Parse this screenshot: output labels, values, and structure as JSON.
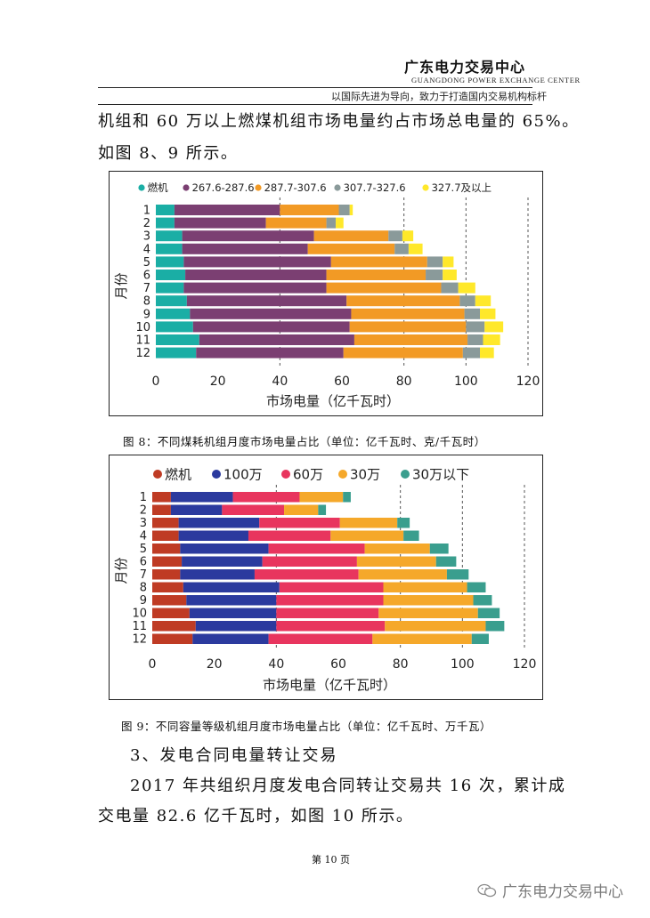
{
  "header": {
    "org_name": "广东电力交易中心",
    "org_name_en": "GUANGDONG POWER EXCHANGE CENTER",
    "motto": "以国际先进为导向，致力于打造国内交易机构标杆"
  },
  "body_text": {
    "para1_line1": "机组和 60 万以上燃煤机组市场电量约占市场总电量的 65%。",
    "para1_line2": "如图 8、9 所示。",
    "section_heading": "3、发电合同电量转让交易",
    "para2_line1": "2017 年共组织月度发电合同转让交易共 16 次，累计成",
    "para2_line2": "交电量 82.6 亿千瓦时，如图 10 所示。"
  },
  "captions": {
    "fig8": "图 8：不同煤耗机组月度市场电量占比（单位：亿千瓦时、克/千瓦时）",
    "fig9": "图 9：不同容量等级机组月度市场电量占比（单位：亿千瓦时、万千瓦）"
  },
  "page_number": "第 10 页",
  "watermark": "广东电力交易中心",
  "chart_data": [
    {
      "type": "bar",
      "orientation": "horizontal",
      "stacked": true,
      "title": "",
      "xlabel": "市场电量（亿千瓦时）",
      "ylabel": "月份",
      "xlim": [
        0,
        120
      ],
      "xticks": [
        "0",
        "20",
        "40",
        "60",
        "80",
        "100",
        "120"
      ],
      "dashed_gridlines_at": [
        40,
        80,
        100,
        120
      ],
      "legend_position": "top",
      "categories": [
        "1",
        "2",
        "3",
        "4",
        "5",
        "6",
        "7",
        "8",
        "9",
        "10",
        "11",
        "12"
      ],
      "series": [
        {
          "name": "燃机",
          "color": "#1aaea5",
          "values": [
            6,
            6,
            8.5,
            8.5,
            9,
            9.5,
            9,
            10,
            11,
            12,
            14,
            13
          ]
        },
        {
          "name": "267.6-287.6",
          "color": "#7b3f72",
          "values": [
            34,
            29.5,
            42.5,
            40.5,
            47.5,
            45.5,
            46,
            51.5,
            52,
            50.5,
            50,
            47.5
          ]
        },
        {
          "name": "287.7-307.6",
          "color": "#f29a25",
          "values": [
            19,
            19.5,
            24,
            28,
            31,
            32,
            37,
            36.5,
            36.5,
            37.5,
            36.5,
            38.5
          ]
        },
        {
          "name": "307.7-327.6",
          "color": "#8a9a9a",
          "values": [
            3.5,
            3,
            4.5,
            4.5,
            5,
            5.5,
            5.5,
            5,
            5,
            6,
            5,
            5.5
          ]
        },
        {
          "name": "327.7及以上",
          "color": "#ffe82a",
          "values": [
            1,
            2.5,
            3.5,
            4.5,
            3.5,
            4.5,
            5.5,
            5,
            5,
            6,
            5.5,
            4.5
          ]
        }
      ]
    },
    {
      "type": "bar",
      "orientation": "horizontal",
      "stacked": true,
      "title": "",
      "xlabel": "市场电量（亿千瓦时）",
      "ylabel": "月份",
      "xlim": [
        0,
        120
      ],
      "xticks": [
        "0",
        "20",
        "40",
        "60",
        "80",
        "100",
        "120"
      ],
      "dashed_gridlines_at": [
        40,
        80,
        100,
        120
      ],
      "legend_position": "top",
      "categories": [
        "1",
        "2",
        "3",
        "4",
        "5",
        "6",
        "7",
        "8",
        "9",
        "10",
        "11",
        "12"
      ],
      "series": [
        {
          "name": "燃机",
          "color": "#bf3b24",
          "values": [
            6,
            6,
            8.5,
            8.5,
            9,
            9.5,
            9,
            10,
            11,
            12,
            14,
            13
          ]
        },
        {
          "name": "100万",
          "color": "#2b3a9e",
          "values": [
            20,
            16.5,
            26,
            22.5,
            28.5,
            26,
            24,
            31,
            29,
            28,
            26,
            24.5
          ]
        },
        {
          "name": "60万",
          "color": "#e8355e",
          "values": [
            21.5,
            20,
            26,
            26.5,
            31,
            30.5,
            33.5,
            33.5,
            34.5,
            33,
            35,
            33.5
          ]
        },
        {
          "name": "30万",
          "color": "#f5a82a",
          "values": [
            14,
            11,
            18.5,
            23.5,
            21,
            25.5,
            28.5,
            27,
            29,
            32,
            32.5,
            32
          ]
        },
        {
          "name": "30万以下",
          "color": "#3a9e8e",
          "values": [
            2.5,
            2.5,
            4,
            5,
            6,
            6.5,
            7,
            6,
            6,
            7,
            6,
            5.5
          ]
        }
      ]
    }
  ]
}
